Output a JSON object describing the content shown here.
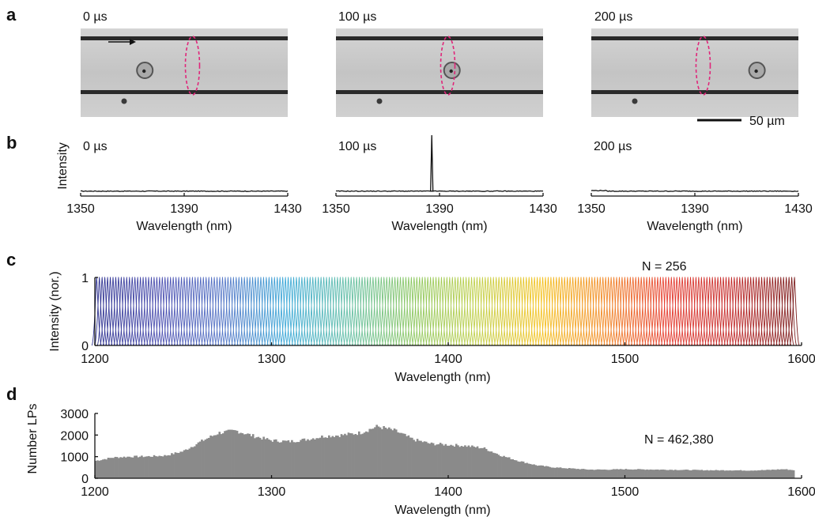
{
  "panels": {
    "a": {
      "letter": "a",
      "frames": [
        {
          "time": "0 µs",
          "cell_position": 0.31,
          "ring_position": 0.54
        },
        {
          "time": "100 µs",
          "cell_position": 0.56,
          "ring_position": 0.54
        },
        {
          "time": "200 µs",
          "cell_position": 0.8,
          "ring_position": 0.54
        }
      ],
      "scale_bar_label": "50 µm",
      "colors": {
        "channel_bg": "#c9c9c9",
        "channel_wall": "#2a2a2a",
        "ring": "#e0267a"
      }
    },
    "b": {
      "letter": "b",
      "ylabel": "Intensity"
    },
    "c": {
      "letter": "c",
      "note": "N = 256",
      "palette": [
        "#2b2f8f",
        "#4b4fb0",
        "#5577c7",
        "#3aa9d8",
        "#64bfa3",
        "#8cc75e",
        "#c2d04a",
        "#f4c21f",
        "#f28a26",
        "#e63b2e",
        "#c42a2a",
        "#7a1b1b"
      ]
    },
    "d": {
      "letter": "d",
      "note": "N = 462,380",
      "bar_color": "#8a8a8a"
    }
  },
  "chart_data": [
    {
      "type": "line",
      "panel": "b",
      "subplot": 1,
      "time_label": "0 µs",
      "xlabel": "Wavelength (nm)",
      "ylabel": "Intensity",
      "xlim": [
        1350,
        1430
      ],
      "xticks": [
        1350,
        1390,
        1430
      ],
      "ylim": [
        0,
        1
      ],
      "baseline": 0.03,
      "peak": null
    },
    {
      "type": "line",
      "panel": "b",
      "subplot": 2,
      "time_label": "100 µs",
      "xlabel": "Wavelength (nm)",
      "xlim": [
        1350,
        1430
      ],
      "xticks": [
        1350,
        1390,
        1430
      ],
      "ylim": [
        0,
        1
      ],
      "baseline": 0.03,
      "peak": {
        "x": 1387,
        "height": 1.0
      }
    },
    {
      "type": "line",
      "panel": "b",
      "subplot": 3,
      "time_label": "200 µs",
      "xlabel": "Wavelength (nm)",
      "xlim": [
        1350,
        1430
      ],
      "xticks": [
        1350,
        1390,
        1430
      ],
      "ylim": [
        0,
        1
      ],
      "baseline": 0.03,
      "peak": null
    },
    {
      "type": "line",
      "panel": "c",
      "xlabel": "Wavelength (nm)",
      "ylabel": "Intensity (nor.)",
      "xlim": [
        1200,
        1600
      ],
      "xticks": [
        1200,
        1300,
        1400,
        1500,
        1600
      ],
      "ylim": [
        0,
        1
      ],
      "yticks": [
        0,
        1
      ],
      "peak_count": 256,
      "peak_start": 1201,
      "peak_end": 1596,
      "annotation": "N = 256"
    },
    {
      "type": "bar",
      "panel": "d",
      "xlabel": "Wavelength (nm)",
      "ylabel": "Number LPs",
      "xlim": [
        1200,
        1600
      ],
      "xticks": [
        1200,
        1300,
        1400,
        1500,
        1600
      ],
      "ylim": [
        0,
        3000
      ],
      "yticks": [
        0,
        1000,
        2000,
        3000
      ],
      "annotation": "N = 462,380",
      "x": [
        1200,
        1210,
        1220,
        1230,
        1240,
        1250,
        1260,
        1270,
        1280,
        1290,
        1300,
        1310,
        1320,
        1330,
        1340,
        1350,
        1360,
        1370,
        1380,
        1390,
        1400,
        1410,
        1420,
        1430,
        1440,
        1450,
        1460,
        1470,
        1480,
        1490,
        1500,
        1510,
        1520,
        1530,
        1540,
        1550,
        1560,
        1570,
        1580,
        1590,
        1595
      ],
      "values": [
        800,
        960,
        1000,
        1010,
        1050,
        1250,
        1700,
        2100,
        2200,
        1950,
        1750,
        1700,
        1800,
        1950,
        2000,
        2100,
        2400,
        2200,
        1800,
        1600,
        1550,
        1500,
        1400,
        1050,
        800,
        600,
        500,
        450,
        400,
        400,
        420,
        410,
        400,
        390,
        380,
        370,
        370,
        360,
        380,
        420,
        380
      ]
    }
  ]
}
